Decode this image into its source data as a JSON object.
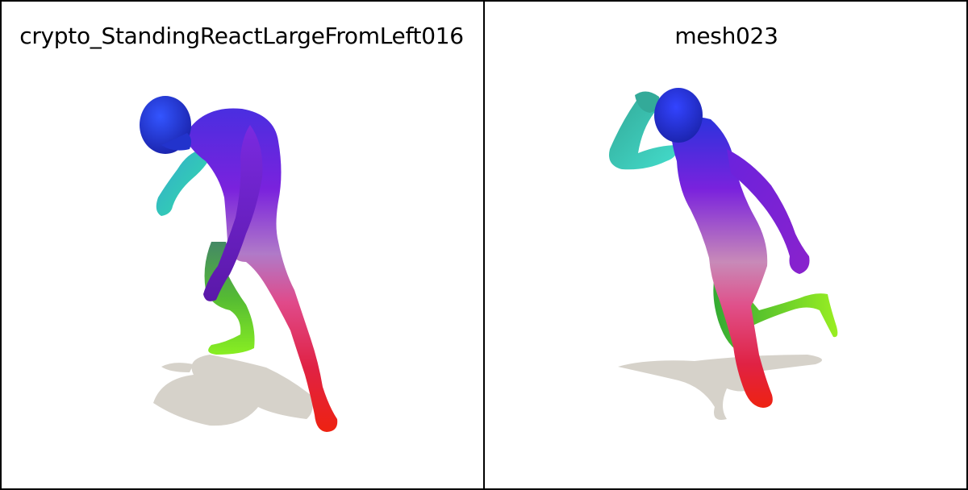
{
  "panels": [
    {
      "title": "crypto_StandingReactLargeFromLeft016"
    },
    {
      "title": "mesh023"
    }
  ],
  "colors": {
    "background": "#ffffff",
    "border": "#000000",
    "shadow": "#d6d2ca",
    "head": "#2233dd",
    "torso": "#7a22dd",
    "arm_cyan": "#33ccbb",
    "leg_green": "#66dd22",
    "leg_red": "#ee2222",
    "pelvis": "#cc88bb"
  }
}
